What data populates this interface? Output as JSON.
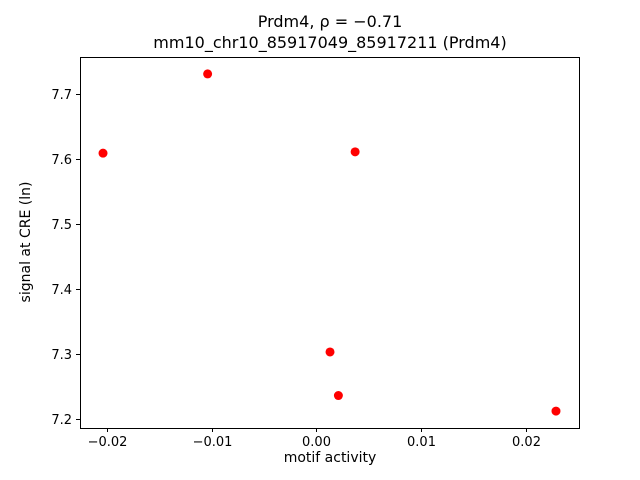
{
  "chart_data": {
    "type": "scatter",
    "title": "Prdm4, ρ = −0.71",
    "subtitle": "mm10_chr10_85917049_85917211 (Prdm4)",
    "xlabel": "motif activity",
    "ylabel": "signal at CRE (ln)",
    "marker_color": "#ff0000",
    "marker_radius": 4.5,
    "xlim": [
      -0.0226,
      0.0251
    ],
    "ylim": [
      7.186,
      7.757
    ],
    "xticks": [
      {
        "value": -0.02,
        "label": "−0.02"
      },
      {
        "value": -0.01,
        "label": "−0.01"
      },
      {
        "value": 0.0,
        "label": "0.00"
      },
      {
        "value": 0.01,
        "label": "0.01"
      },
      {
        "value": 0.02,
        "label": "0.02"
      }
    ],
    "yticks": [
      {
        "value": 7.2,
        "label": "7.2"
      },
      {
        "value": 7.3,
        "label": "7.3"
      },
      {
        "value": 7.4,
        "label": "7.4"
      },
      {
        "value": 7.5,
        "label": "7.5"
      },
      {
        "value": 7.6,
        "label": "7.6"
      },
      {
        "value": 7.7,
        "label": "7.7"
      }
    ],
    "points": [
      {
        "x": -0.0204,
        "y": 7.609
      },
      {
        "x": -0.0104,
        "y": 7.731
      },
      {
        "x": 0.0037,
        "y": 7.611
      },
      {
        "x": 0.0013,
        "y": 7.303
      },
      {
        "x": 0.0021,
        "y": 7.236
      },
      {
        "x": 0.0229,
        "y": 7.212
      }
    ],
    "grid": false,
    "legend": null
  }
}
